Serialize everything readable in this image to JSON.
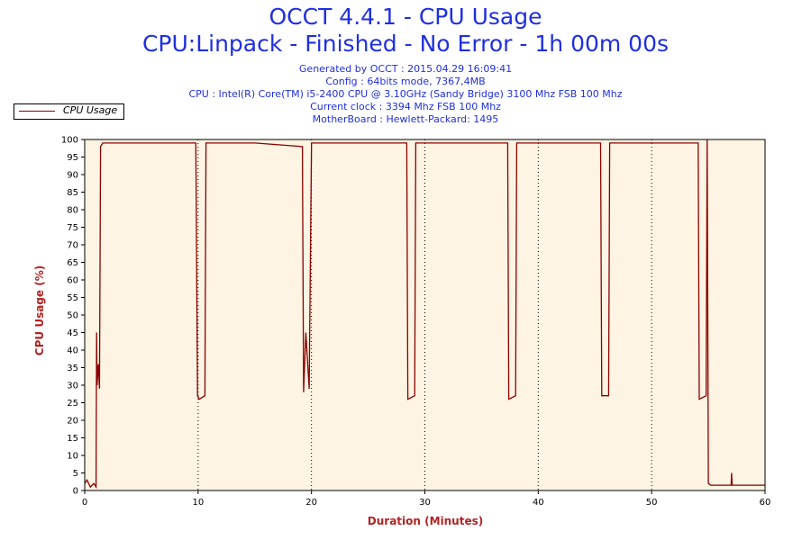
{
  "title": "OCCT 4.4.1 - CPU Usage",
  "subtitle": "CPU:Linpack - Finished - No Error - 1h 00m 00s",
  "info_lines": [
    "Generated by OCCT : 2015.04.29 16:09:41",
    "Config : 64bits mode, 7367,4MB",
    "CPU : Intel(R) Core(TM) i5-2400 CPU @ 3.10GHz (Sandy Bridge) 3100 Mhz FSB 100 Mhz",
    "Current clock : 3394 Mhz FSB 100 Mhz",
    "MotherBoard : Hewlett-Packard: 1495"
  ],
  "colors": {
    "title": "#1f2fe0",
    "series": "#8b0000",
    "plot_bg": "#fdf4e3",
    "axis_label": "#b22222"
  },
  "chart_data": {
    "type": "line",
    "xlabel": "Duration (Minutes)",
    "ylabel": "CPU Usage (%)",
    "xlim": [
      0,
      60
    ],
    "ylim": [
      0,
      100
    ],
    "x_ticks": [
      0,
      10,
      20,
      30,
      40,
      50,
      60
    ],
    "y_ticks": [
      0,
      5,
      10,
      15,
      20,
      25,
      30,
      35,
      40,
      45,
      50,
      55,
      60,
      65,
      70,
      75,
      80,
      85,
      90,
      95,
      100
    ],
    "legend_position": "top-left",
    "series": [
      {
        "name": "CPU Usage",
        "x": [
          0,
          0.2,
          0.5,
          0.8,
          1.0,
          1.05,
          1.1,
          1.2,
          1.3,
          1.4,
          1.6,
          5,
          9.8,
          9.95,
          10.1,
          10.6,
          10.7,
          15,
          19.2,
          19.3,
          19.5,
          19.8,
          20.0,
          28.4,
          28.5,
          29.1,
          29.2,
          37.3,
          37.4,
          38.0,
          38.1,
          45.5,
          45.6,
          46.2,
          46.3,
          54.1,
          54.2,
          54.8,
          54.9,
          55.0,
          55.2,
          57.0,
          57.05,
          57.1,
          60
        ],
        "y": [
          2,
          3,
          1,
          2,
          1,
          45,
          30,
          36,
          29,
          98,
          99,
          99,
          99,
          27,
          26,
          27,
          99,
          99,
          98,
          28,
          45,
          29,
          99,
          99,
          26,
          27,
          99,
          99,
          26,
          27,
          99,
          99,
          27,
          27,
          99,
          99,
          26,
          27,
          100,
          2,
          1.5,
          1.5,
          5,
          1.5,
          1.5
        ]
      }
    ]
  }
}
